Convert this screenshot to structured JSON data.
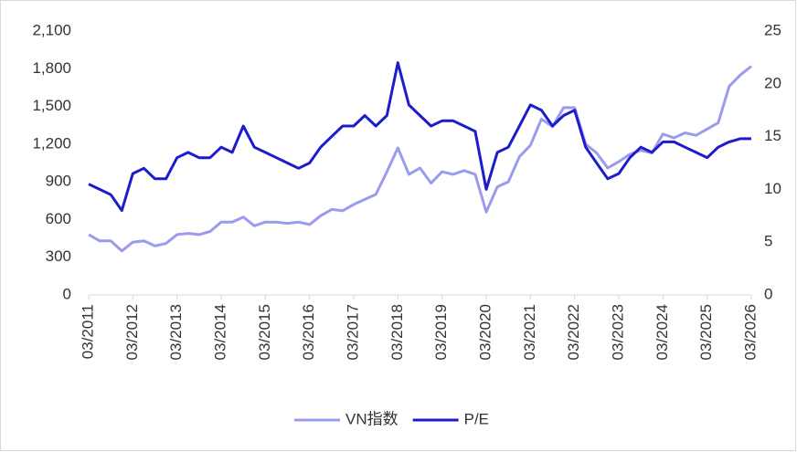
{
  "chart_data": {
    "type": "line",
    "x": [
      "03/2011",
      null,
      null,
      null,
      "03/2012",
      null,
      null,
      null,
      "03/2013",
      null,
      null,
      null,
      "03/2014",
      null,
      null,
      null,
      "03/2015",
      null,
      null,
      null,
      "03/2016",
      null,
      null,
      null,
      "03/2017",
      null,
      null,
      null,
      "03/2018",
      null,
      null,
      null,
      "03/2019",
      null,
      null,
      null,
      "03/2020",
      null,
      null,
      null,
      "03/2021",
      null,
      null,
      null,
      "03/2022",
      null,
      null,
      null,
      "03/2023",
      null,
      null,
      null,
      "03/2024",
      null,
      null,
      null,
      "03/2025",
      null,
      null,
      null,
      "03/2026"
    ],
    "series": [
      {
        "name": "VN指数",
        "color": "#9b9bee",
        "values": [
          480,
          430,
          430,
          350,
          420,
          430,
          390,
          410,
          480,
          490,
          480,
          505,
          580,
          580,
          620,
          550,
          580,
          580,
          570,
          580,
          560,
          630,
          680,
          670,
          720,
          760,
          800,
          980,
          1170,
          960,
          1010,
          890,
          980,
          960,
          990,
          960,
          660,
          860,
          900,
          1100,
          1190,
          1400,
          1340,
          1490,
          1490,
          1200,
          1130,
          1010,
          1060,
          1120,
          1150,
          1130,
          1280,
          1250,
          1290,
          1270,
          1320,
          1370,
          1660,
          1750,
          1820
        ]
      },
      {
        "name": "P/E",
        "color": "#1c1ccc",
        "axis": "y2",
        "values": [
          10.5,
          10,
          9.5,
          8,
          11.5,
          12,
          11,
          11,
          13,
          13.5,
          13,
          13,
          14,
          13.5,
          16,
          14,
          13.5,
          13,
          12.5,
          12,
          12.5,
          14,
          15,
          16,
          16,
          17,
          16,
          17,
          22,
          18,
          17,
          16,
          16.5,
          16.5,
          16,
          15.5,
          10,
          13.5,
          14,
          16,
          18,
          17.5,
          16,
          17,
          17.5,
          14,
          12.5,
          11,
          11.5,
          13,
          14,
          13.5,
          14.5,
          14.5,
          14,
          13.5,
          13,
          14,
          14.5,
          14.8,
          14.8
        ]
      }
    ],
    "ylim": [
      0,
      2100
    ],
    "yticks": [
      0,
      300,
      600,
      900,
      {
        "value": 1200,
        "label": "1,200"
      },
      {
        "value": 1500,
        "label": "1,500"
      },
      {
        "value": 1800,
        "label": "1,800"
      },
      {
        "value": 2100,
        "label": "2,100"
      }
    ],
    "y2lim": [
      0,
      25
    ],
    "y2ticks": [
      0,
      5,
      10,
      15,
      20,
      25
    ],
    "legend": "bottom"
  }
}
